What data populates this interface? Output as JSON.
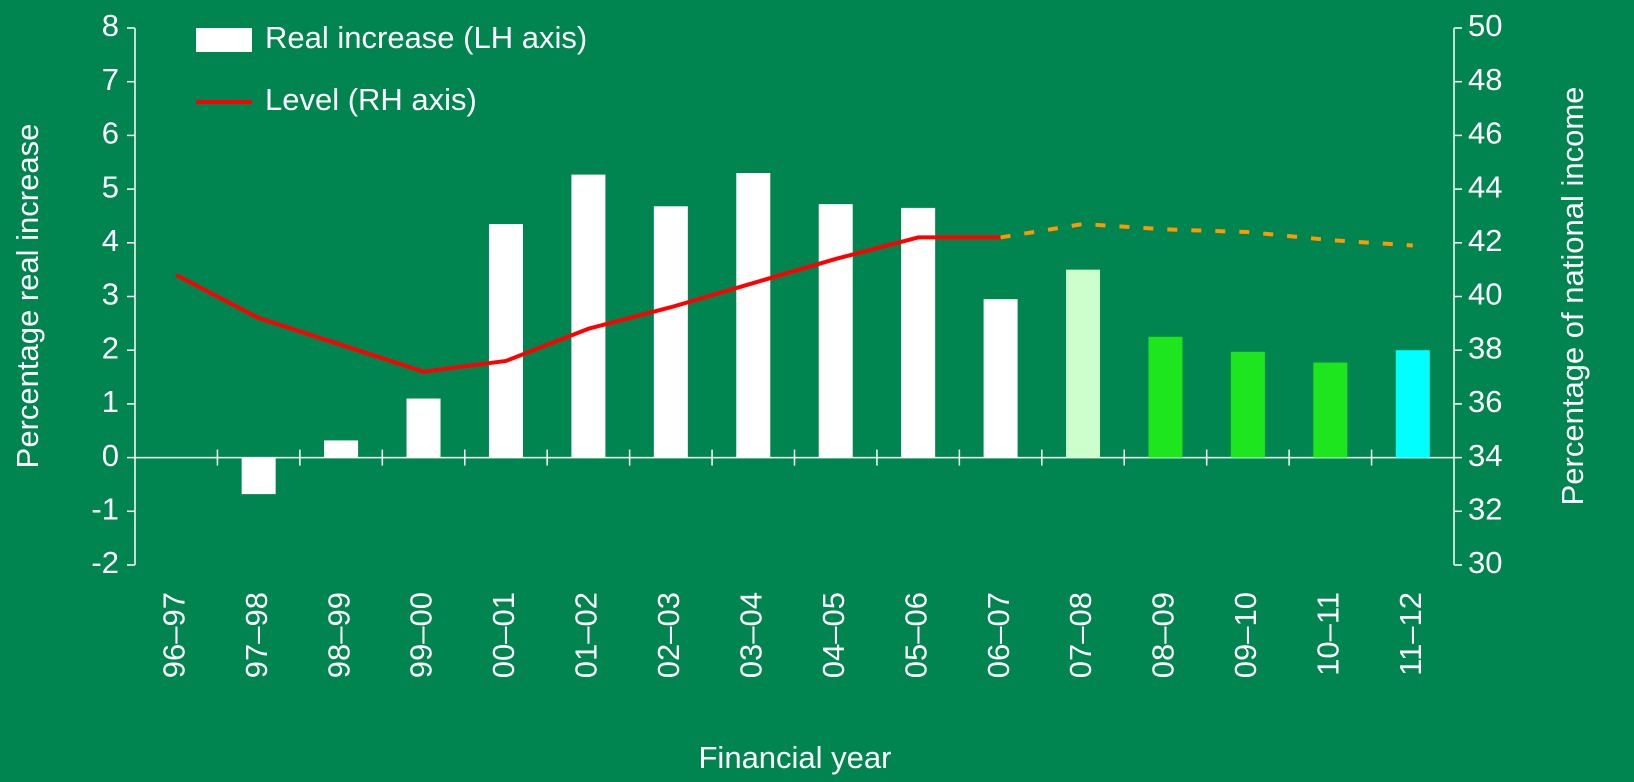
{
  "chart_data": {
    "type": "bar-line",
    "x_label": "Financial year",
    "y_label": "Percentage real increase",
    "y2_label": "Percentage of national income",
    "categories": [
      "96–97",
      "97–98",
      "98–99",
      "99–00",
      "00–01",
      "01–02",
      "02–03",
      "03–04",
      "04–05",
      "05–06",
      "06–07",
      "07–08",
      "08–09",
      "09–10",
      "10–11",
      "11–12"
    ],
    "series": [
      {
        "name": "Real increase (LH axis)",
        "type": "bar",
        "color": "#ffffff",
        "colors": [
          "#ffffff",
          "#ffffff",
          "#ffffff",
          "#ffffff",
          "#ffffff",
          "#ffffff",
          "#ffffff",
          "#ffffff",
          "#ffffff",
          "#ffffff",
          "#ffffff",
          "#ccffcc",
          "#1ee61e",
          "#1ee61e",
          "#1ee61e",
          "#00ffff"
        ],
        "values": [
          null,
          -0.68,
          0.32,
          1.1,
          4.35,
          5.27,
          4.68,
          5.3,
          4.72,
          4.65,
          2.95,
          3.5,
          2.25,
          1.97,
          1.77,
          2.0
        ]
      },
      {
        "name": "Level (RH axis)",
        "type": "line",
        "axis": "y2",
        "color": "#ff0000",
        "values": [
          40.8,
          39.2,
          38.2,
          37.2,
          37.6,
          38.8,
          39.6,
          40.5,
          41.4,
          42.2,
          42.2,
          null,
          null,
          null,
          null,
          null
        ]
      },
      {
        "type": "line",
        "axis": "y2",
        "color": "#ff9900",
        "dashed": true,
        "values": [
          null,
          null,
          null,
          null,
          null,
          null,
          null,
          null,
          null,
          null,
          42.2,
          42.7,
          42.5,
          42.4,
          42.1,
          41.9
        ]
      }
    ],
    "ylim": [
      -2,
      8
    ],
    "yticks": [
      -2,
      -1,
      0,
      1,
      2,
      3,
      4,
      5,
      6,
      7,
      8
    ],
    "y2lim": [
      30,
      50
    ],
    "y2ticks": [
      30,
      32,
      34,
      36,
      38,
      40,
      42,
      44,
      46,
      48,
      50
    ],
    "legend": "upper left"
  }
}
